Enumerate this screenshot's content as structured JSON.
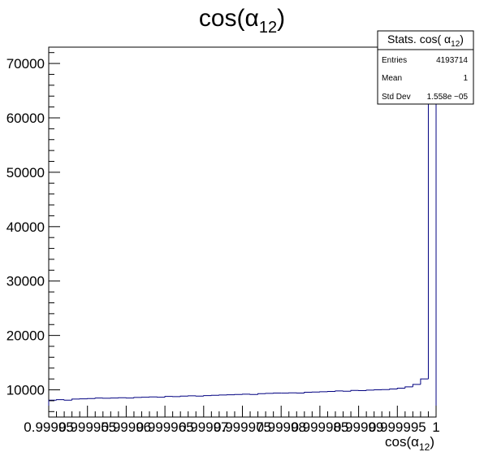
{
  "chart_data": {
    "type": "histogram",
    "title": "cos(α12)",
    "title_main": "cos(α",
    "title_sub": "12",
    "title_close": ")",
    "xlabel_main": "cos(α",
    "xlabel_sub": "12",
    "xlabel_close": ")",
    "xlim": [
      0.99995,
      1.0
    ],
    "ylim": [
      5000,
      73000
    ],
    "x_tick_labels": [
      "0.99995",
      "0.999955",
      "0.99996",
      "0.999965",
      "0.99997",
      "0.999975",
      "0.99998",
      "0.999985",
      "0.99999",
      "0.999995",
      "1"
    ],
    "y_tick_labels": [
      "10000",
      "20000",
      "30000",
      "40000",
      "50000",
      "60000",
      "70000"
    ],
    "y_ticks": [
      10000,
      20000,
      30000,
      40000,
      50000,
      60000,
      70000
    ],
    "x_ticks": [
      0.99995,
      0.999955,
      0.99996,
      0.999965,
      0.99997,
      0.999975,
      0.99998,
      0.999985,
      0.99999,
      0.999995,
      1.0
    ],
    "bin_width": 1e-06,
    "bin_contents": [
      8100,
      8200,
      8100,
      8300,
      8350,
      8400,
      8500,
      8450,
      8500,
      8550,
      8500,
      8600,
      8650,
      8700,
      8650,
      8800,
      8750,
      8850,
      8900,
      8850,
      8950,
      9000,
      9050,
      9100,
      9150,
      9200,
      9150,
      9300,
      9350,
      9400,
      9400,
      9450,
      9400,
      9550,
      9600,
      9650,
      9700,
      9800,
      9750,
      9900,
      9850,
      9950,
      10000,
      10050,
      10150,
      10300,
      10550,
      11000,
      12000,
      70500
    ],
    "series": [
      {
        "name": "",
        "line_color": "#000080"
      }
    ],
    "stats": {
      "header_main": "Stats. cos( α",
      "header_sub": "12",
      "header_close": ")",
      "rows": [
        {
          "label": "Entries",
          "value": "4193714"
        },
        {
          "label": "Mean",
          "value": "1"
        },
        {
          "label": "Std Dev",
          "value": "1.558e −05"
        }
      ]
    },
    "grid": false,
    "stats_placement": "top-right"
  }
}
